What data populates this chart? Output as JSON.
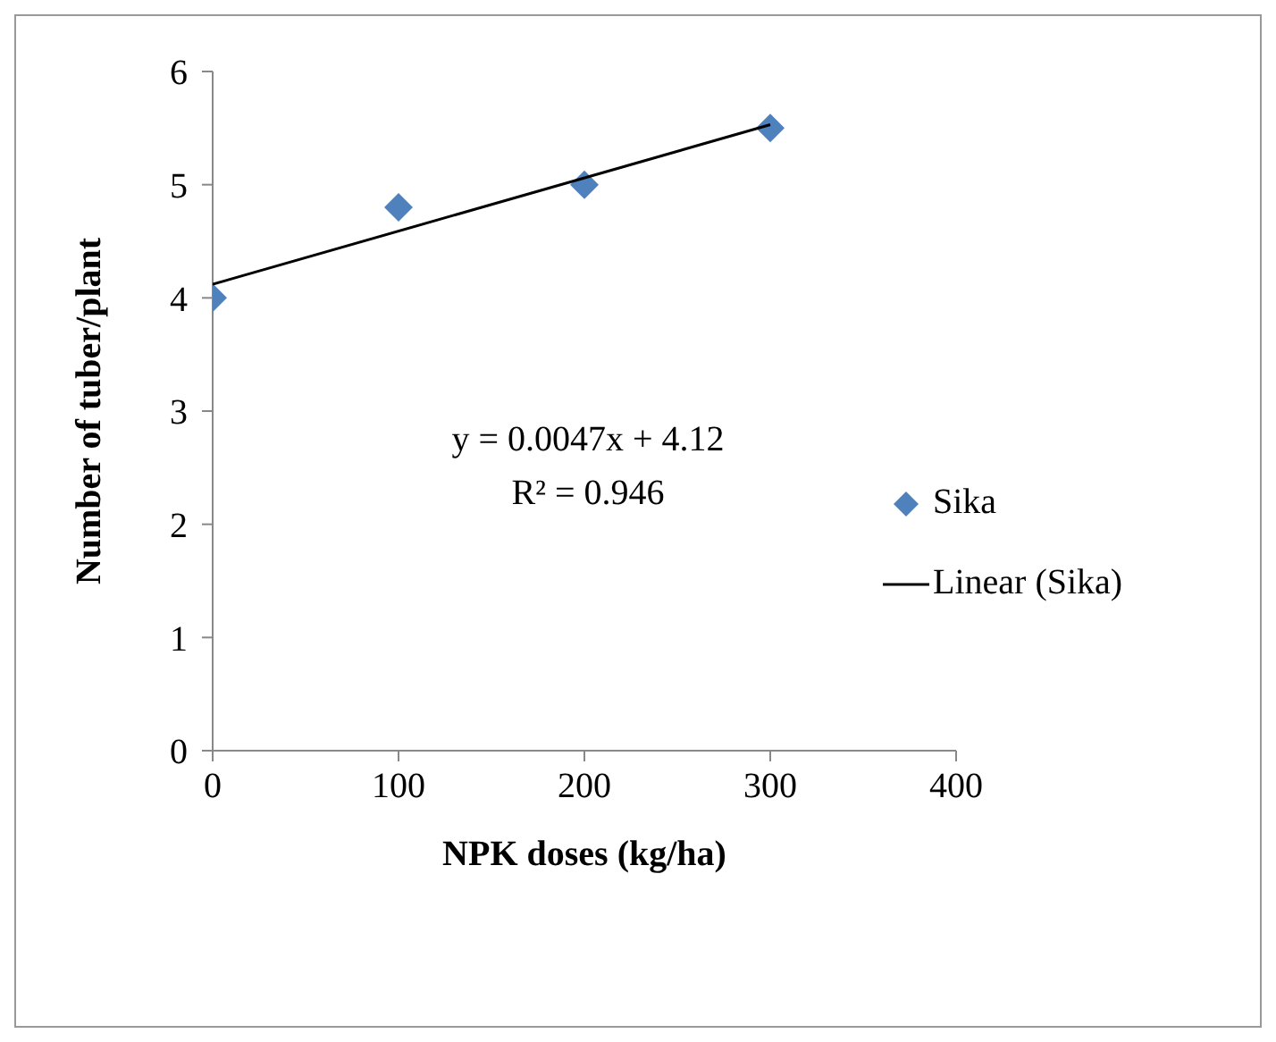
{
  "chart_data": {
    "type": "scatter",
    "xlabel": "NPK doses (kg/ha)",
    "ylabel": "Number of tuber/plant",
    "xlim": [
      0,
      400
    ],
    "xticks": [
      0,
      100,
      200,
      300,
      400
    ],
    "ylim": [
      0,
      6
    ],
    "yticks": [
      0,
      1,
      2,
      3,
      4,
      5,
      6
    ],
    "grid": false,
    "legend": "right",
    "marker": "diamond",
    "series": [
      {
        "name": "Sika",
        "color": "#4f81bd",
        "x": [
          0,
          100,
          200,
          300
        ],
        "values": [
          4,
          4.8,
          5,
          5.5
        ]
      },
      {
        "name": "Linear (Sika)",
        "type": "line",
        "color": "#000000",
        "x": [
          0,
          300
        ],
        "values": [
          4.12,
          5.53
        ],
        "marker": "none",
        "line_style": "solid"
      }
    ],
    "annotations": [
      "y = 0.0047x + 4.12",
      "R² = 0.946"
    ]
  }
}
